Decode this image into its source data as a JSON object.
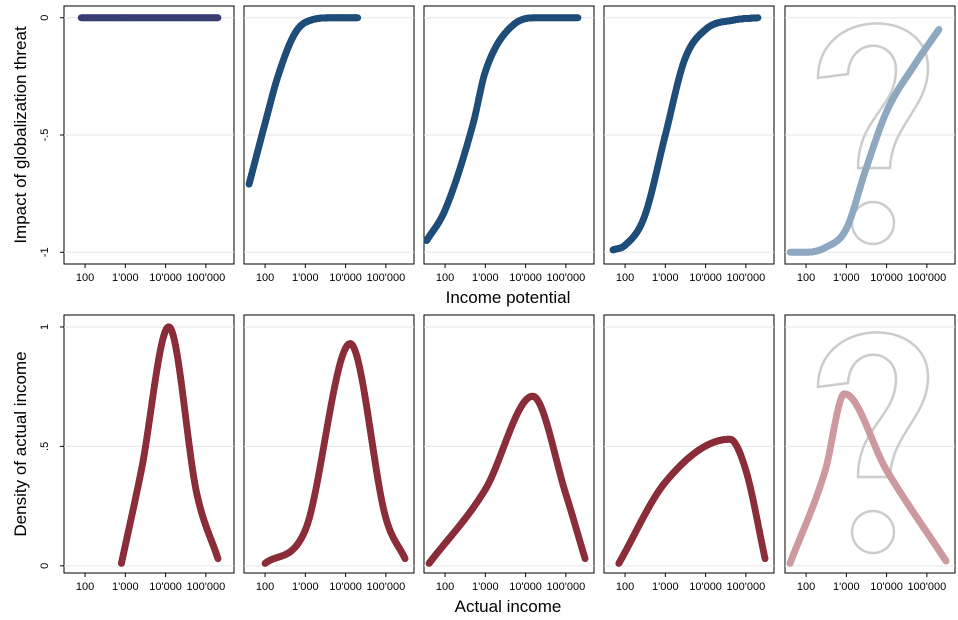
{
  "chart_data": {
    "type": "scatter",
    "x_axis": {
      "scale": "log10",
      "range": [
        30,
        500000
      ],
      "ticks": [
        100,
        1000,
        10000,
        100000
      ],
      "tick_labels": [
        "100",
        "1'000",
        "10'000",
        "100'000"
      ]
    },
    "rows": [
      {
        "ylabel": "Impact of globalization threat",
        "xlabel": "Income potential",
        "ylim": [
          -1.05,
          0.05
        ],
        "yticks": [
          0,
          -0.5,
          -1
        ],
        "ytick_labels": [
          "0",
          "-.5",
          "-1"
        ],
        "grid": true,
        "panels": [
          {
            "color": "#3a3f73",
            "question_mark": false,
            "curve": "flat",
            "x": [
              80,
              1000,
              10000,
              100000,
              200000
            ],
            "y": [
              0,
              0,
              0,
              0,
              0
            ]
          },
          {
            "color": "#1f4e79",
            "question_mark": false,
            "curve": "logistic",
            "x": [
              40,
              100,
              200,
              500,
              1000,
              5000,
              20000
            ],
            "y": [
              -0.71,
              -0.45,
              -0.26,
              -0.08,
              -0.02,
              0,
              0
            ]
          },
          {
            "color": "#1f4e79",
            "question_mark": false,
            "curve": "logistic",
            "x": [
              35,
              100,
              500,
              1000,
              5000,
              20000,
              200000
            ],
            "y": [
              -0.95,
              -0.82,
              -0.45,
              -0.23,
              -0.03,
              0,
              0
            ]
          },
          {
            "color": "#1f4e79",
            "question_mark": false,
            "curve": "logistic",
            "x": [
              50,
              100,
              300,
              1000,
              3000,
              10000,
              50000,
              200000
            ],
            "y": [
              -0.99,
              -0.97,
              -0.85,
              -0.5,
              -0.18,
              -0.05,
              -0.01,
              0
            ]
          },
          {
            "color": "#8fa8c0",
            "question_mark": true,
            "curve": "logistic",
            "x": [
              40,
              100,
              300,
              1000,
              3000,
              10000,
              50000,
              200000
            ],
            "y": [
              -1,
              -1,
              -0.98,
              -0.9,
              -0.65,
              -0.4,
              -0.2,
              -0.05
            ]
          }
        ]
      },
      {
        "ylabel": "Density of actual income",
        "xlabel": "Actual income",
        "ylim": [
          -0.03,
          1.05
        ],
        "yticks": [
          0,
          0.5,
          1
        ],
        "ytick_labels": [
          "0",
          ".5",
          "1"
        ],
        "grid": true,
        "panels": [
          {
            "color": "#8b2e3a",
            "question_mark": false,
            "curve": "gaussian",
            "x": [
              800,
              2500,
              12000,
              60000,
              200000
            ],
            "y": [
              0.01,
              0.4,
              1.0,
              0.3,
              0.03
            ]
          },
          {
            "color": "#8b2e3a",
            "question_mark": false,
            "curve": "gaussian",
            "x": [
              100,
              1000,
              13000,
              100000,
              300000
            ],
            "y": [
              0.01,
              0.15,
              0.93,
              0.2,
              0.03
            ]
          },
          {
            "color": "#8b2e3a",
            "question_mark": false,
            "curve": "gaussian",
            "x": [
              40,
              1000,
              15000,
              100000,
              300000
            ],
            "y": [
              0.01,
              0.32,
              0.71,
              0.3,
              0.03
            ]
          },
          {
            "color": "#8b2e3a",
            "question_mark": false,
            "curve": "gaussian",
            "x": [
              70,
              1000,
              40000,
              100000,
              300000
            ],
            "y": [
              0.01,
              0.35,
              0.53,
              0.4,
              0.03
            ]
          },
          {
            "color": "#cc9a9f",
            "question_mark": true,
            "curve": "gaussian",
            "x": [
              40,
              300,
              900,
              10000,
              300000
            ],
            "y": [
              0.01,
              0.4,
              0.72,
              0.4,
              0.02
            ]
          }
        ]
      }
    ]
  }
}
